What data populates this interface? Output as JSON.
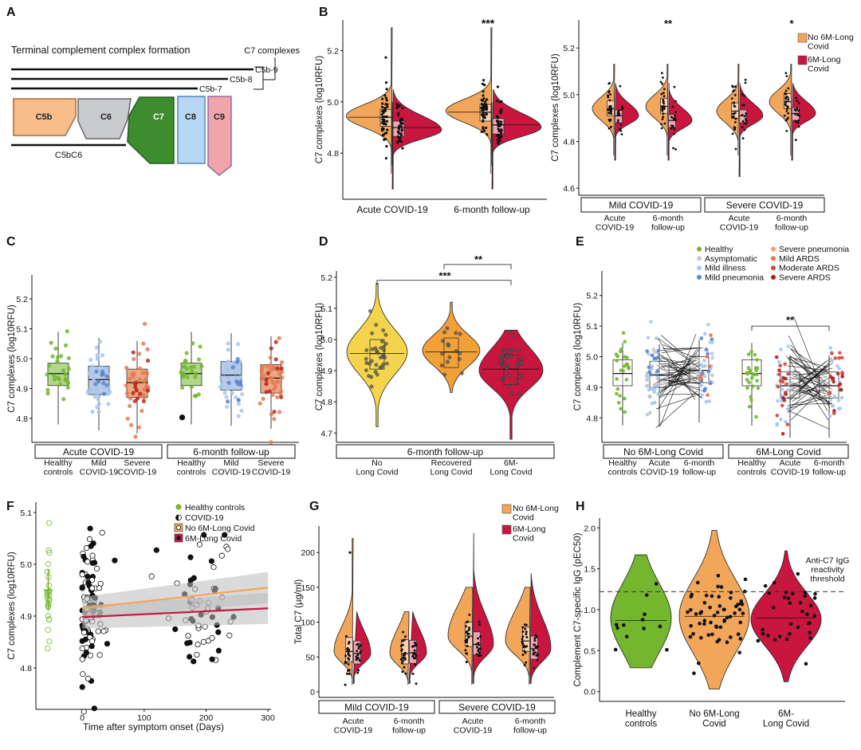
{
  "colors": {
    "no_lc": "#F2A65A",
    "lc": "#C8163F",
    "healthy": "#74B62E",
    "mild": "#A9C6EA",
    "severe": "#E57A52",
    "c5b": "#F7BE8C",
    "c6": "#CACBCE",
    "c7": "#3D8C2E",
    "c8": "#B8D7F3",
    "c9": "#EFA5AA",
    "violin_d_none": "#F4D44C",
    "violin_d_recovered": "#F2A038",
    "violin_d_lc": "#C8163F"
  },
  "panel_a": {
    "letter": "A",
    "title": "Terminal complement complex formation",
    "bracket_label": "C7 complexes",
    "lines": [
      "C5b-9",
      "C5b-8",
      "C5b-7"
    ],
    "proteins": [
      "C5b",
      "C6",
      "C7",
      "C8",
      "C9"
    ],
    "underline_label": "C5bC6"
  },
  "chart_data": [
    {
      "id": "B-left",
      "letter": "B",
      "type": "violin",
      "ylabel": "C7 complexes (log10RFU)",
      "ylim": [
        4.62,
        5.32
      ],
      "yticks": [
        4.8,
        5.0,
        5.2
      ],
      "categories": [
        "Acute COVID-19",
        "6-month follow-up"
      ],
      "significance": [
        "***"
      ],
      "series": [
        {
          "name": "No 6M-Long Covid",
          "medians": [
            4.94,
            4.96
          ]
        },
        {
          "name": "6M-Long Covid",
          "medians": [
            4.9,
            4.91
          ]
        }
      ]
    },
    {
      "id": "B-right",
      "letter": "",
      "type": "violin",
      "ylabel": "C7 complexes (log10RFU)",
      "ylim": [
        4.57,
        5.32
      ],
      "yticks": [
        4.6,
        4.8,
        5.0,
        5.2
      ],
      "groups": [
        "Mild COVID-19",
        "Severe COVID-19"
      ],
      "categories": [
        "Acute\nCOVID-19",
        "6-month\nfollow-up",
        "Acute\nCOVID-19",
        "6-month\nfollow-up"
      ],
      "significance": [
        "**",
        "*"
      ],
      "legend": [
        "No 6M-Long\nCovid",
        "6M-Long\nCovid"
      ],
      "series": [
        {
          "name": "No 6M-Long Covid",
          "medians": [
            4.94,
            4.95,
            4.93,
            4.97
          ]
        },
        {
          "name": "6M-Long Covid",
          "medians": [
            4.91,
            4.89,
            4.91,
            4.92
          ]
        }
      ]
    },
    {
      "id": "C",
      "letter": "C",
      "type": "box",
      "ylabel": "C7 complexes (log10RFU)",
      "ylim": [
        4.72,
        5.28
      ],
      "yticks": [
        4.8,
        4.9,
        5.0,
        5.1,
        5.2
      ],
      "groups": [
        "Acute COVID-19",
        "6-month follow-up"
      ],
      "categories": [
        "Healthy\ncontrols",
        "Mild\nCOVID-19",
        "Severe\nCOVID-19",
        "Healthy\ncontrols",
        "Mild\nCOVID-19",
        "Severe\nCOVID-19"
      ],
      "medians": [
        4.95,
        4.93,
        4.92,
        4.95,
        4.945,
        4.935
      ]
    },
    {
      "id": "D",
      "letter": "D",
      "type": "violin",
      "ylabel": "C7 complexes (log10RFU)",
      "ylim": [
        4.67,
        5.22
      ],
      "yticks": [
        4.7,
        4.8,
        4.9,
        5.0,
        5.1,
        5.2
      ],
      "group": "6-month follow-up",
      "categories": [
        "No\nLong Covid",
        "Recovered\nLong Covid",
        "6M-\nLong Covid"
      ],
      "medians": [
        4.955,
        4.96,
        4.905
      ],
      "significance": [
        "***",
        "**"
      ]
    },
    {
      "id": "E",
      "letter": "E",
      "type": "box",
      "ylabel": "C7 complexes (log10RFU)",
      "ylim": [
        4.72,
        5.28
      ],
      "yticks": [
        4.8,
        4.9,
        5.0,
        5.1,
        5.2
      ],
      "groups": [
        "No 6M-Long Covid",
        "6M-Long Covid"
      ],
      "categories": [
        "Healthy\ncontrols",
        "Acute\nCOVID-19",
        "6-month\nfollow-up",
        "Healthy\ncontrols",
        "Acute\nCOVID-19",
        "6-month\nfollow-up"
      ],
      "medians": [
        4.945,
        4.94,
        4.955,
        4.945,
        4.905,
        4.905
      ],
      "significance": [
        "**"
      ],
      "legend": [
        "Healthy",
        "Asymptomatic",
        "Mild illness",
        "Mild pneumonia",
        "Severe pneumonia",
        "Mild ARDS",
        "Moderate ARDS",
        "Severe ARDS"
      ],
      "legend_colors": [
        "#74B62E",
        "#C9C9C9",
        "#A9C6EA",
        "#5E83C8",
        "#F2A06A",
        "#E86F4E",
        "#D5473A",
        "#A8211E"
      ]
    },
    {
      "id": "F",
      "letter": "F",
      "type": "scatter",
      "xlabel": "Time after symptom onset (Days)",
      "ylabel": "C7 complexes (log10RFU)",
      "xlim": [
        -75,
        305
      ],
      "ylim": [
        4.72,
        5.12
      ],
      "xticks": [
        0,
        100,
        200,
        300
      ],
      "yticks": [
        4.8,
        4.9,
        5.0,
        5.1
      ],
      "legend": [
        "Healthy controls",
        "COVID-19",
        "No 6M-Long Covid",
        "6M-Long Covid"
      ],
      "trend_lines": [
        {
          "name": "No 6M-Long Covid",
          "x": [
            0,
            300
          ],
          "y": [
            4.915,
            4.955
          ]
        },
        {
          "name": "6M-Long Covid",
          "x": [
            0,
            300
          ],
          "y": [
            4.898,
            4.915
          ]
        }
      ],
      "healthy_mean": 4.95
    },
    {
      "id": "G",
      "letter": "G",
      "type": "violin",
      "ylabel": "Total C7 (µg/ml)",
      "ylim": [
        -8,
        238
      ],
      "yticks": [
        0,
        50,
        100,
        150,
        200
      ],
      "groups": [
        "Mild COVID-19",
        "Severe COVID-19"
      ],
      "categories": [
        "Acute\nCOVID-19",
        "6-month\nfollow-up",
        "Acute\nCOVID-19",
        "6-month\nfollow-up"
      ],
      "legend": [
        "No 6M-Long\nCovid",
        "6M-Long\nCovid"
      ],
      "series": [
        {
          "name": "No 6M-Long Covid",
          "medians": [
            58,
            55,
            80,
            73
          ]
        },
        {
          "name": "6M-Long Covid",
          "medians": [
            55,
            56,
            68,
            62
          ]
        }
      ]
    },
    {
      "id": "H",
      "letter": "H",
      "type": "violin",
      "ylabel": "Complement C7-specific IgG (pEC50)",
      "ylim": [
        -0.12,
        2.12
      ],
      "yticks": [
        0.0,
        0.5,
        1.0,
        1.5,
        2.0
      ],
      "categories": [
        "Healthy\ncontrols",
        "No 6M-Long\nCovid",
        "6M-\nLong Covid"
      ],
      "medians": [
        0.87,
        0.92,
        0.9
      ],
      "threshold": 1.22,
      "threshold_label": "Anti-C7 IgG\nreactivity\nthreshold"
    }
  ]
}
